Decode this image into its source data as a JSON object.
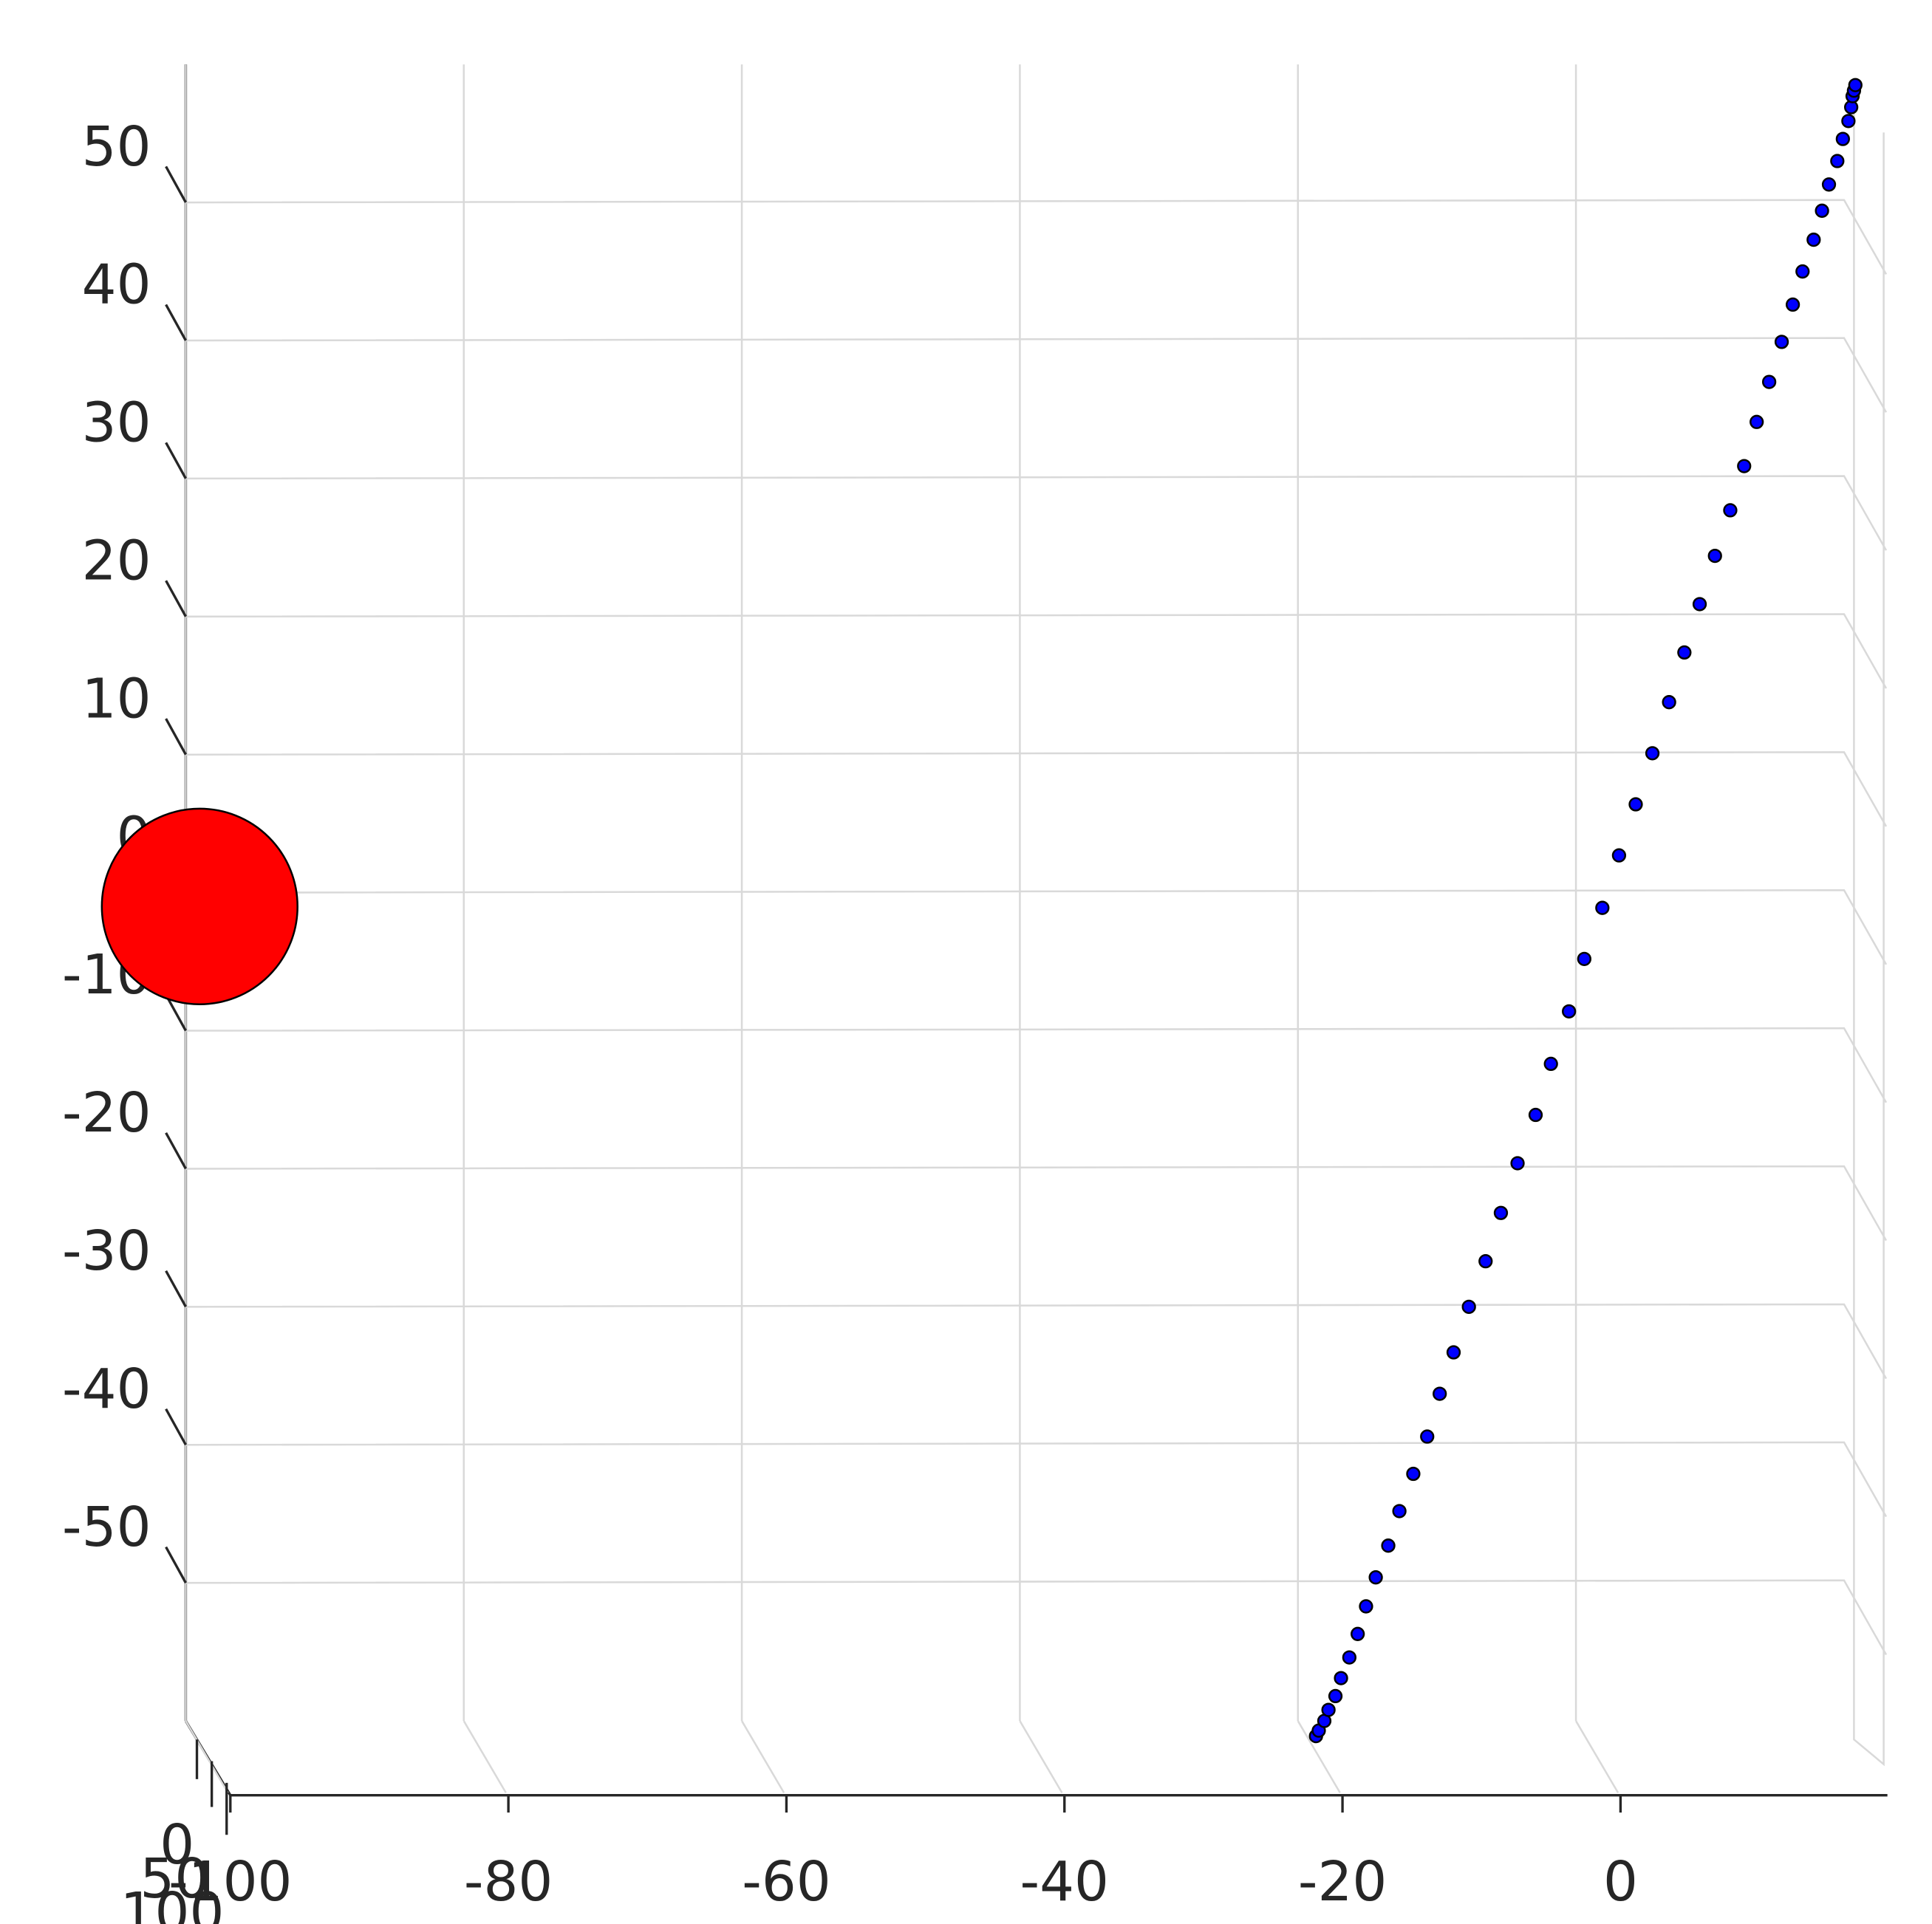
{
  "chart_data": {
    "type": "scatter",
    "xlim": [
      -100,
      20
    ],
    "xticks": [
      -100,
      -80,
      -60,
      -40,
      -20,
      0
    ],
    "ylim": [
      -60,
      60
    ],
    "yticks": [
      -50,
      -40,
      -30,
      -20,
      -10,
      0,
      10,
      20,
      30,
      40,
      50
    ],
    "zlim": [
      0,
      100
    ],
    "zticks": [
      0,
      50,
      100
    ],
    "grid": true,
    "series": [
      {
        "color": "#ff0000",
        "marker_size": 79,
        "x": [
          -99
        ],
        "values": [
          -1
        ]
      },
      {
        "color": "#0000ff",
        "marker_size": 5,
        "x": [
          -18.7,
          -18.5,
          -18.1,
          -17.8,
          -17.3,
          -16.9,
          -16.3,
          -15.7,
          -15.1,
          -14.4,
          -13.5,
          -12.7,
          -11.7,
          -10.7,
          -9.8,
          -8.8,
          -7.7,
          -6.5,
          -5.4,
          -4.2,
          -2.9,
          -1.8,
          -0.5,
          0.6,
          1.9,
          3.1,
          4.3,
          5.5,
          6.7,
          7.8,
          8.9,
          10.0,
          11.1,
          12.1,
          13.0,
          13.9,
          14.8,
          15.6,
          16.3,
          17.1,
          17.7,
          18.2,
          18.8,
          19.2,
          19.6,
          19.8,
          19.9,
          20.0,
          20.1
        ],
        "values": [
          -61.1,
          -60.7,
          -60.0,
          -59.2,
          -58.2,
          -56.9,
          -55.4,
          -53.7,
          -51.7,
          -49.6,
          -47.3,
          -44.8,
          -42.1,
          -39.4,
          -36.3,
          -33.3,
          -30.0,
          -26.7,
          -23.2,
          -19.6,
          -16.1,
          -12.4,
          -8.6,
          -4.8,
          -1.1,
          2.7,
          6.4,
          10.1,
          13.8,
          17.4,
          20.9,
          24.4,
          27.7,
          30.9,
          34.1,
          37.0,
          39.9,
          42.6,
          45.0,
          47.3,
          49.4,
          51.3,
          53.0,
          54.6,
          55.9,
          56.9,
          57.7,
          58.1,
          58.5
        ]
      }
    ]
  }
}
